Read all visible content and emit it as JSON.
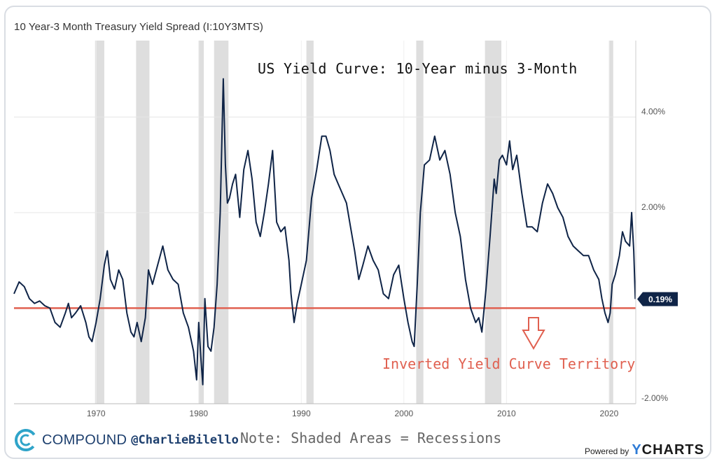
{
  "chart_title": "10 Year-3 Month Treasury Yield Spread (I:10Y3MTS)",
  "headline": "US Yield Curve: 10-Year minus 3-Month",
  "annotation_inverted": "Inverted Yield Curve Territory",
  "footer_note": "Note: Shaded Areas = Recessions",
  "branding": {
    "compound": "COMPOUND",
    "handle": "@CharlieBilello",
    "powered_by": "Powered by",
    "ycharts_y": "Y",
    "ycharts_rest": "CHARTS"
  },
  "colors": {
    "line": "#0f2447",
    "zero_line": "#e06050",
    "recession": "#dedede",
    "last_badge": "#0f2447"
  },
  "chart_data": {
    "type": "line",
    "title": "10 Year-3 Month Treasury Yield Spread (I:10Y3MTS)",
    "xlim": [
      1962,
      2022.6
    ],
    "ylim": [
      -2.0,
      5.6
    ],
    "x_ticks": [
      1970,
      1980,
      1990,
      2000,
      2010,
      2020
    ],
    "x_tick_labels": [
      "1970",
      "1980",
      "1990",
      "2000",
      "2010",
      "2020"
    ],
    "y_ticks": [
      -2,
      2,
      4
    ],
    "y_tick_labels": [
      "-2.00%",
      "2.00%",
      "4.00%"
    ],
    "grid": true,
    "reference_line_y": 0,
    "last_value_label": "0.19%",
    "last_value": 0.19,
    "recessions": [
      [
        1969.9,
        1970.8
      ],
      [
        1973.9,
        1975.2
      ],
      [
        1980.0,
        1980.5
      ],
      [
        1981.5,
        1982.9
      ],
      [
        1990.5,
        1991.2
      ],
      [
        2001.2,
        2001.9
      ],
      [
        2007.9,
        2009.5
      ],
      [
        2020.0,
        2020.4
      ]
    ],
    "series": [
      {
        "x": [
          1962.0,
          1962.5,
          1963.0,
          1963.5,
          1964.0,
          1964.5,
          1965.0,
          1965.5,
          1966.0,
          1966.5,
          1967.0,
          1967.3,
          1967.6,
          1968.0,
          1968.5,
          1969.0,
          1969.3,
          1969.6,
          1970.0,
          1970.4,
          1970.8,
          1971.1,
          1971.4,
          1971.8,
          1972.2,
          1972.6,
          1973.0,
          1973.4,
          1973.7,
          1974.0,
          1974.4,
          1974.8,
          1975.1,
          1975.5,
          1976.0,
          1976.5,
          1977.0,
          1977.5,
          1978.0,
          1978.5,
          1979.0,
          1979.5,
          1979.8,
          1980.0,
          1980.2,
          1980.4,
          1980.6,
          1980.9,
          1981.2,
          1981.5,
          1981.8,
          1982.1,
          1982.4,
          1982.6,
          1982.8,
          1983.0,
          1983.3,
          1983.6,
          1984.0,
          1984.4,
          1984.8,
          1985.2,
          1985.6,
          1986.0,
          1986.4,
          1986.8,
          1987.2,
          1987.6,
          1988.0,
          1988.4,
          1988.8,
          1989.0,
          1989.3,
          1989.6,
          1990.0,
          1990.5,
          1991.0,
          1991.5,
          1992.0,
          1992.4,
          1992.8,
          1993.2,
          1993.6,
          1994.0,
          1994.4,
          1994.8,
          1995.2,
          1995.6,
          1996.0,
          1996.5,
          1997.0,
          1997.5,
          1998.0,
          1998.5,
          1999.0,
          1999.5,
          2000.0,
          2000.4,
          2000.8,
          2001.0,
          2001.3,
          2001.6,
          2002.0,
          2002.5,
          2003.0,
          2003.5,
          2004.0,
          2004.5,
          2005.0,
          2005.5,
          2006.0,
          2006.5,
          2007.0,
          2007.3,
          2007.6,
          2008.0,
          2008.4,
          2008.8,
          2009.0,
          2009.3,
          2009.6,
          2010.0,
          2010.3,
          2010.6,
          2011.0,
          2011.5,
          2012.0,
          2012.5,
          2013.0,
          2013.5,
          2014.0,
          2014.5,
          2015.0,
          2015.5,
          2016.0,
          2016.5,
          2017.0,
          2017.5,
          2018.0,
          2018.5,
          2019.0,
          2019.3,
          2019.6,
          2019.9,
          2020.1,
          2020.3,
          2020.6,
          2021.0,
          2021.3,
          2021.6,
          2022.0,
          2022.2,
          2022.4,
          2022.55
        ],
        "y": [
          0.3,
          0.55,
          0.45,
          0.2,
          0.1,
          0.15,
          0.05,
          0.0,
          -0.3,
          -0.4,
          -0.1,
          0.1,
          -0.2,
          -0.1,
          0.05,
          -0.3,
          -0.6,
          -0.7,
          -0.3,
          0.2,
          0.9,
          1.2,
          0.6,
          0.4,
          0.8,
          0.6,
          -0.1,
          -0.5,
          -0.6,
          -0.3,
          -0.7,
          -0.2,
          0.8,
          0.5,
          0.9,
          1.3,
          0.8,
          0.6,
          0.5,
          -0.1,
          -0.4,
          -0.9,
          -1.5,
          -0.3,
          -1.0,
          -1.6,
          0.2,
          -0.8,
          -0.9,
          -0.4,
          0.5,
          2.0,
          4.8,
          3.0,
          2.2,
          2.3,
          2.6,
          2.8,
          1.9,
          2.9,
          3.3,
          2.7,
          1.8,
          1.5,
          2.0,
          2.6,
          3.3,
          1.8,
          1.6,
          1.7,
          1.0,
          0.3,
          -0.3,
          0.1,
          0.5,
          1.0,
          2.3,
          2.9,
          3.6,
          3.6,
          3.3,
          2.8,
          2.6,
          2.4,
          2.2,
          1.7,
          1.2,
          0.6,
          0.9,
          1.3,
          1.0,
          0.8,
          0.3,
          0.2,
          0.7,
          0.9,
          0.2,
          -0.3,
          -0.7,
          -0.8,
          0.5,
          2.0,
          3.0,
          3.1,
          3.6,
          3.1,
          3.3,
          2.8,
          2.0,
          1.5,
          0.6,
          0.0,
          -0.3,
          -0.2,
          -0.5,
          0.4,
          1.5,
          2.7,
          2.4,
          3.1,
          3.2,
          3.0,
          3.5,
          2.9,
          3.2,
          2.4,
          1.7,
          1.7,
          1.6,
          2.2,
          2.6,
          2.4,
          2.1,
          1.9,
          1.5,
          1.3,
          1.2,
          1.1,
          1.1,
          0.8,
          0.6,
          0.2,
          -0.1,
          -0.3,
          -0.1,
          0.5,
          0.7,
          1.1,
          1.6,
          1.4,
          1.3,
          2.0,
          1.2,
          0.19
        ]
      }
    ]
  }
}
